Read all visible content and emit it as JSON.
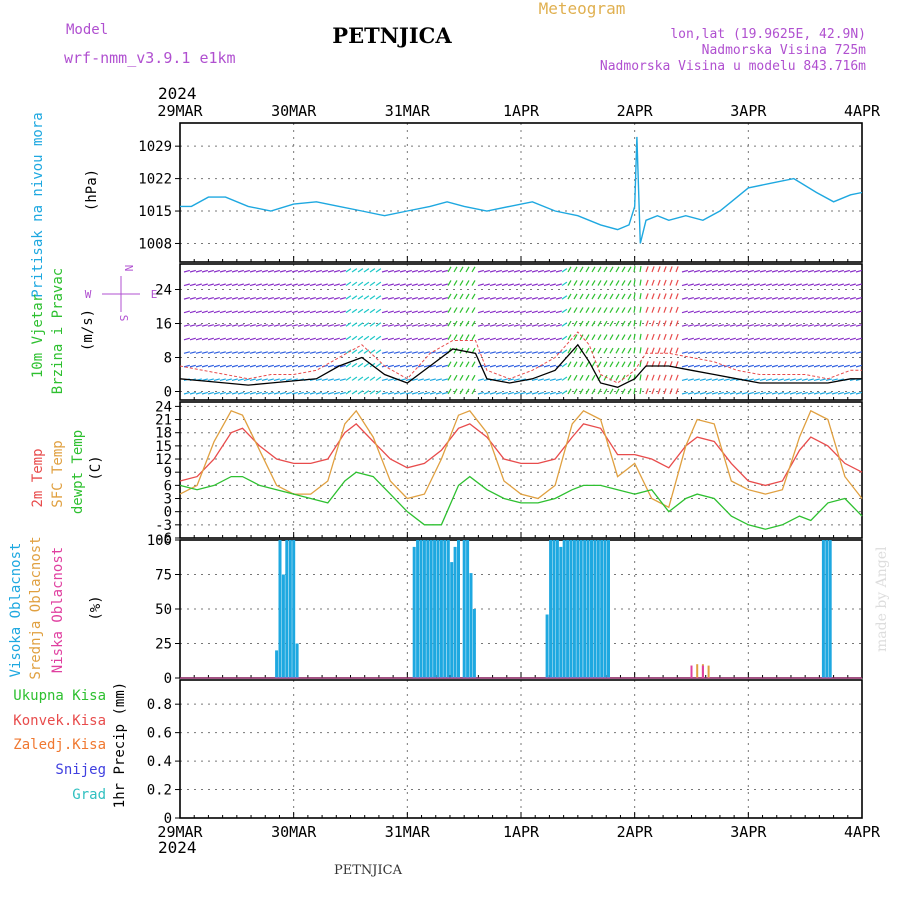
{
  "header": {
    "model_label": "Model",
    "model_name": "wrf-nmm_v3.9.1  e1km",
    "station": "PETNJICA",
    "meteogram_label": "Meteogram",
    "coords": "lon,lat (19.9625E, 42.9N)",
    "elevation": "Nadmorska Visina 725m",
    "model_elevation": "Nadmorska Visina u modelu 843.716m",
    "year_top": "2024",
    "year_bottom": "2024",
    "footer_station": "PETNJICA",
    "credit": "made by Angel"
  },
  "time_axis": [
    "29MAR",
    "30MAR",
    "31MAR",
    "1APR",
    "2APR",
    "3APR",
    "4APR"
  ],
  "colors": {
    "pressure": "#1ea8e0",
    "temp2m": "#e84c4c",
    "sfc_temp": "#e0a040",
    "dewpoint": "#2ec030",
    "wind_line": "#000000",
    "gust": "#e84c4c",
    "cloud_high": "#1ea8e0",
    "cloud_mid": "#e0a040",
    "cloud_low": "#e040a0",
    "rain_total": "#2ec030",
    "rain_conv": "#e84c4c",
    "rain_freezing": "#f07830",
    "snow": "#4040e0",
    "hail": "#30c0c0",
    "model_text": "#b050d0"
  },
  "chart_data": [
    {
      "type": "line",
      "panel": "pressure",
      "ylabel_lines": [
        "Pritisak na nivou mora"
      ],
      "unit": "(hPa)",
      "ticks": [
        1008,
        1015,
        1022,
        1029
      ],
      "ylim": [
        1004,
        1034
      ],
      "x_days": [
        0,
        0.1,
        0.25,
        0.4,
        0.6,
        0.8,
        1.0,
        1.2,
        1.4,
        1.6,
        1.8,
        2.0,
        2.2,
        2.35,
        2.5,
        2.7,
        2.9,
        3.1,
        3.3,
        3.5,
        3.7,
        3.85,
        3.95,
        4.0,
        4.02,
        4.05,
        4.1,
        4.2,
        4.3,
        4.45,
        4.6,
        4.75,
        4.85,
        5.0,
        5.2,
        5.4,
        5.6,
        5.75,
        5.9,
        6.0
      ],
      "values": [
        1016,
        1016,
        1018,
        1018,
        1016,
        1015,
        1016.5,
        1017,
        1016,
        1015,
        1014,
        1015,
        1016,
        1017,
        1016,
        1015,
        1016,
        1017,
        1015,
        1014,
        1012,
        1011,
        1012,
        1016,
        1031,
        1008,
        1013,
        1014,
        1013,
        1014,
        1013,
        1015,
        1017,
        1020,
        1021,
        1022,
        1019,
        1017,
        1018.5,
        1019
      ]
    },
    {
      "type": "line",
      "panel": "wind",
      "ylabel_lines": [
        "10m Vjetar",
        "Brzina i Pravac"
      ],
      "unit": "(m/s)",
      "compass": [
        "N",
        "W",
        "E",
        "S"
      ],
      "ticks": [
        0,
        8,
        16,
        24
      ],
      "ylim": [
        -2,
        30
      ],
      "x_days": [
        0,
        0.2,
        0.4,
        0.6,
        0.8,
        1.0,
        1.2,
        1.4,
        1.6,
        1.8,
        2.0,
        2.2,
        2.4,
        2.6,
        2.7,
        2.9,
        3.1,
        3.3,
        3.5,
        3.6,
        3.7,
        3.85,
        4.0,
        4.1,
        4.3,
        4.5,
        4.7,
        4.9,
        5.1,
        5.3,
        5.5,
        5.7,
        5.9,
        6.0
      ],
      "wind_speed": [
        3,
        2.5,
        2,
        1.5,
        2,
        2.5,
        3,
        6,
        8,
        4,
        2,
        6,
        10,
        9,
        3,
        2,
        3,
        5,
        11,
        7,
        2,
        1,
        3,
        6,
        6,
        5,
        4,
        3,
        2,
        2,
        2,
        2,
        3,
        3
      ],
      "gust": [
        6,
        5,
        4,
        3,
        4,
        4,
        5,
        8,
        11,
        6,
        3,
        9,
        12,
        12,
        5,
        3,
        5,
        8,
        14,
        11,
        4,
        2,
        5,
        9,
        9,
        8,
        7,
        5,
        4,
        4,
        4,
        3,
        5,
        5
      ]
    },
    {
      "type": "line",
      "panel": "temperature",
      "ylabel_lines": [
        "2m Temp",
        "SFC Temp",
        "dewpt Temp"
      ],
      "unit": "(C)",
      "ticks": [
        -6,
        -3,
        0,
        3,
        6,
        9,
        12,
        15,
        18,
        21,
        24
      ],
      "ylim": [
        -6,
        25
      ],
      "x_days": [
        0,
        0.15,
        0.3,
        0.45,
        0.55,
        0.7,
        0.85,
        1.0,
        1.15,
        1.3,
        1.45,
        1.55,
        1.7,
        1.85,
        2.0,
        2.15,
        2.3,
        2.45,
        2.55,
        2.7,
        2.85,
        3.0,
        3.15,
        3.3,
        3.45,
        3.55,
        3.7,
        3.85,
        4.0,
        4.15,
        4.3,
        4.45,
        4.55,
        4.7,
        4.85,
        5.0,
        5.15,
        5.3,
        5.45,
        5.55,
        5.7,
        5.85,
        6.0
      ],
      "series": [
        {
          "name": "2m Temp",
          "values": [
            7,
            8,
            12,
            18,
            19,
            15,
            12,
            11,
            11,
            12,
            18,
            20,
            16,
            12,
            10,
            11,
            14,
            19,
            20,
            17,
            12,
            11,
            11,
            12,
            17,
            20,
            19,
            13,
            13,
            12,
            10,
            15,
            17,
            16,
            11,
            7,
            6,
            7,
            14,
            17,
            15,
            11,
            9
          ]
        },
        {
          "name": "SFC Temp",
          "values": [
            4,
            6,
            16,
            23,
            22,
            14,
            6,
            4,
            4,
            7,
            20,
            23,
            17,
            7,
            3,
            4,
            12,
            22,
            23,
            18,
            7,
            4,
            3,
            6,
            20,
            23,
            21,
            8,
            11,
            3,
            1,
            15,
            21,
            20,
            7,
            5,
            4,
            5,
            17,
            23,
            21,
            8,
            3
          ]
        },
        {
          "name": "dewpt Temp",
          "values": [
            6,
            5,
            6,
            8,
            8,
            6,
            5,
            4,
            3,
            2,
            7,
            9,
            8,
            4,
            0,
            -3,
            -3,
            6,
            8,
            5,
            3,
            2,
            2,
            3,
            5,
            6,
            6,
            5,
            4,
            5,
            0,
            3,
            4,
            3,
            -1,
            -3,
            -4,
            -3,
            -1,
            -2,
            2,
            3,
            -1
          ]
        }
      ]
    },
    {
      "type": "bar",
      "panel": "clouds",
      "ylabel_lines": [
        "Visoka Oblacnost",
        "Srednja Oblacnost",
        "Niska Oblacnost"
      ],
      "unit": "(%)",
      "ticks": [
        0,
        25,
        50,
        75,
        100
      ],
      "ylim": [
        0,
        100
      ],
      "series": [
        {
          "name": "Visoka Oblacnost",
          "x_days": [
            0.85,
            0.88,
            0.91,
            0.94,
            0.97,
            1.0,
            1.03,
            2.06,
            2.09,
            2.12,
            2.15,
            2.18,
            2.21,
            2.24,
            2.27,
            2.3,
            2.33,
            2.36,
            2.39,
            2.42,
            2.45,
            2.5,
            2.53,
            2.56,
            2.59,
            3.23,
            3.26,
            3.29,
            3.32,
            3.35,
            3.38,
            3.41,
            3.44,
            3.47,
            3.5,
            3.53,
            3.56,
            3.59,
            3.62,
            3.65,
            3.68,
            3.71,
            3.74,
            3.77,
            5.66,
            5.69,
            5.72
          ],
          "values": [
            20,
            100,
            75,
            100,
            100,
            100,
            25,
            95,
            100,
            100,
            100,
            100,
            100,
            100,
            100,
            100,
            100,
            100,
            84,
            95,
            100,
            100,
            100,
            76,
            50,
            46,
            100,
            100,
            100,
            95,
            100,
            100,
            100,
            100,
            100,
            100,
            100,
            100,
            100,
            100,
            100,
            100,
            100,
            100,
            100,
            100,
            100
          ]
        },
        {
          "name": "Srednja Oblacnost",
          "x_days": [
            4.45,
            4.5,
            4.55,
            4.6,
            4.65
          ],
          "values": [
            8,
            9,
            10,
            10,
            9
          ]
        },
        {
          "name": "Niska Oblacnost",
          "x_days": [
            3.77,
            4.5,
            4.6
          ],
          "values": [
            8,
            9,
            9
          ]
        }
      ]
    },
    {
      "type": "bar",
      "panel": "precip",
      "ylabel_lines": [
        "1hr Precip (mm)"
      ],
      "legend": [
        "Ukupna Kisa",
        "Konvek.Kisa",
        "Zaledj.Kisa",
        "Snijeg",
        "Grad"
      ],
      "ticks": [
        0,
        0.2,
        0.4,
        0.6,
        0.8
      ],
      "ylim": [
        0,
        0.97
      ],
      "values": []
    }
  ]
}
